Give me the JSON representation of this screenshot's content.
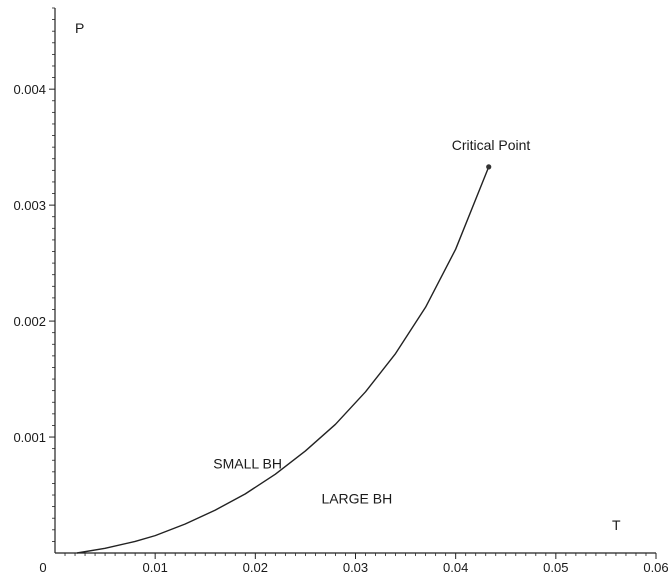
{
  "chart_data": {
    "type": "line",
    "title": "",
    "xlabel": "T",
    "ylabel": "P",
    "xlim": [
      0,
      0.06
    ],
    "ylim": [
      0,
      0.0047
    ],
    "x_ticks": [
      0,
      0.01,
      0.02,
      0.03,
      0.04,
      0.05,
      0.06
    ],
    "x_tick_labels": [
      "0",
      "0.01",
      "0.02",
      "0.03",
      "0.04",
      "0.05",
      "0.06"
    ],
    "y_ticks": [
      0.001,
      0.002,
      0.003,
      0.004
    ],
    "y_tick_labels": [
      "0.001",
      "0.002",
      "0.003",
      "0.004"
    ],
    "grid": false,
    "series": [
      {
        "color": "#222222",
        "x": [
          0.0022,
          0.005,
          0.008,
          0.01,
          0.013,
          0.016,
          0.019,
          0.022,
          0.025,
          0.028,
          0.031,
          0.034,
          0.037,
          0.04,
          0.0433
        ],
        "y": [
          0.0,
          4e-05,
          0.0001,
          0.00015,
          0.00025,
          0.00037,
          0.00051,
          0.00068,
          0.00088,
          0.00111,
          0.00139,
          0.00172,
          0.00212,
          0.00262,
          0.00333
        ]
      }
    ],
    "critical_point": {
      "x": 0.0433,
      "y": 0.00333,
      "label": "Critical Point"
    },
    "region_labels": [
      {
        "text": "SMALL BH",
        "x": 0.0158,
        "y": 0.00077
      },
      {
        "text": "LARGE BH",
        "x": 0.0266,
        "y": 0.00047
      }
    ]
  }
}
